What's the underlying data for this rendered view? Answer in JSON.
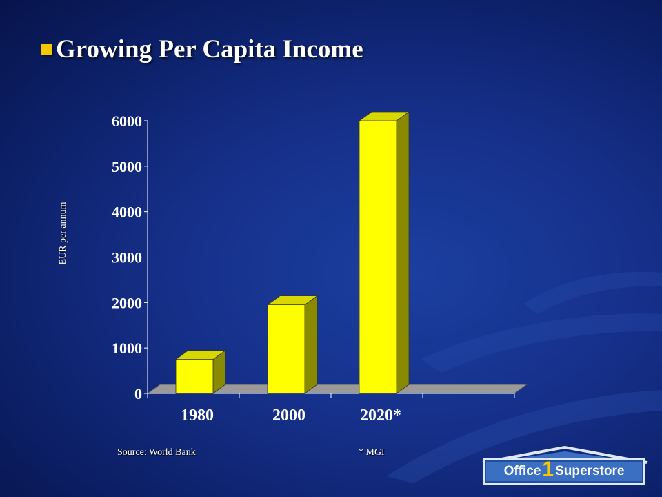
{
  "slide": {
    "title": "Growing Per Capita Income",
    "source_note": "Source: World Bank",
    "footnote": "* MGI"
  },
  "logo": {
    "text_left": "Office",
    "text_number": "1",
    "text_right": "Superstore"
  },
  "colors": {
    "bar_front": "#ffff00",
    "bar_side": "#8a8a00",
    "bar_top": "#d8d800",
    "floor": "#9a9a9a",
    "bullet": "#f5c800"
  },
  "chart_data": {
    "type": "bar",
    "categories": [
      "1980",
      "2000",
      "2020*"
    ],
    "values": [
      750,
      1950,
      6000
    ],
    "ylabel": "EUR per annum",
    "xlabel": "",
    "ylim": [
      0,
      6000
    ],
    "yticks": [
      0,
      1000,
      2000,
      3000,
      4000,
      5000,
      6000
    ],
    "grid": false,
    "legend": "none",
    "style": "3d"
  }
}
